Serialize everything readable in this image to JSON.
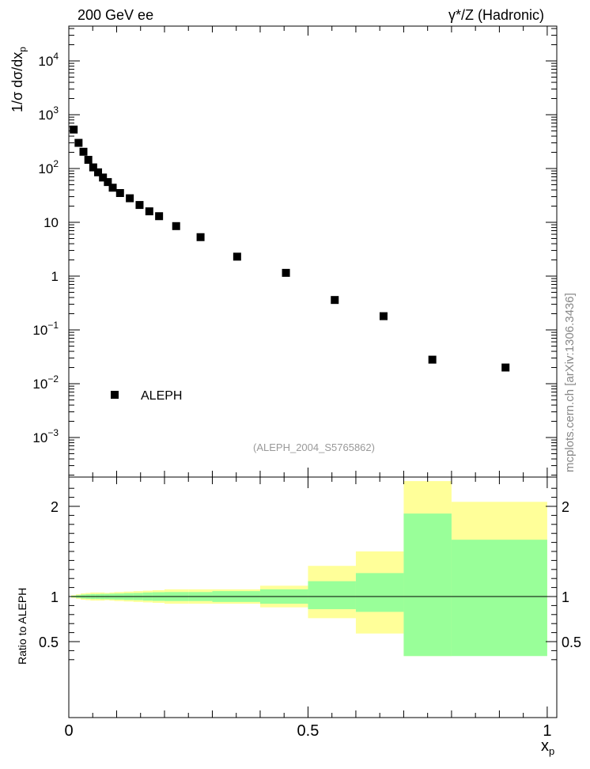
{
  "header": {
    "left": "200 GeV ee",
    "right": "γ*/Z (Hadronic)"
  },
  "side_label": "mcplots.cern.ch [arXiv:1306.3436]",
  "analysis_id": "(ALEPH_2004_S5765862)",
  "legend": {
    "label": "ALEPH",
    "position": "lower-left"
  },
  "chart_data": [
    {
      "type": "scatter",
      "panel": "main",
      "ylabel": "1/σ dσ/dx_p",
      "yscale": "log",
      "xlim": [
        0,
        1
      ],
      "ylim": [
        0.0002,
        40000
      ],
      "y_ticks": [
        "10^-3",
        "10^-2",
        "10^-1",
        "1",
        "10",
        "10^2",
        "10^3",
        "10^4"
      ],
      "marker": "square",
      "series": [
        {
          "name": "ALEPH",
          "x": [
            0.01,
            0.02,
            0.03,
            0.04,
            0.05,
            0.06,
            0.07,
            0.08,
            0.09,
            0.105,
            0.125,
            0.145,
            0.165,
            0.185,
            0.22,
            0.27,
            0.345,
            0.445,
            0.545,
            0.645,
            0.745,
            0.895
          ],
          "y": [
            530,
            300,
            205,
            145,
            105,
            85,
            68,
            56,
            44,
            35,
            28,
            21,
            16,
            13,
            8.5,
            5.3,
            2.3,
            1.15,
            0.36,
            0.18,
            0.028,
            0.02
          ]
        }
      ]
    },
    {
      "type": "area",
      "panel": "ratio",
      "xlabel": "x_p",
      "ylabel": "Ratio to ALEPH",
      "xlim": [
        0,
        1.02
      ],
      "ylim": [
        0.34,
        2.28
      ],
      "x_ticks": [
        "0",
        "0.5",
        "1"
      ],
      "y_ticks": [
        "0.5",
        "1",
        "2"
      ],
      "reference_line": 1,
      "bin_edges": [
        0.005,
        0.015,
        0.025,
        0.035,
        0.045,
        0.055,
        0.065,
        0.075,
        0.085,
        0.095,
        0.115,
        0.135,
        0.155,
        0.175,
        0.2,
        0.25,
        0.3,
        0.4,
        0.5,
        0.6,
        0.7,
        0.8,
        1.0
      ],
      "bands": [
        {
          "name": "total uncertainty",
          "color": "#ffff99",
          "low": [
            0.985,
            0.975,
            0.965,
            0.96,
            0.955,
            0.955,
            0.955,
            0.96,
            0.955,
            0.95,
            0.945,
            0.94,
            0.935,
            0.93,
            0.92,
            0.92,
            0.92,
            0.88,
            0.76,
            0.59,
            0.34,
            0.43
          ],
          "high": [
            1.015,
            1.025,
            1.035,
            1.04,
            1.045,
            1.045,
            1.045,
            1.04,
            1.045,
            1.05,
            1.055,
            1.06,
            1.065,
            1.07,
            1.08,
            1.08,
            1.08,
            1.12,
            1.34,
            1.5,
            2.28,
            2.05
          ]
        },
        {
          "name": "statistical uncertainty",
          "color": "#99ff99",
          "low": [
            0.992,
            0.985,
            0.978,
            0.975,
            0.972,
            0.972,
            0.97,
            0.97,
            0.968,
            0.966,
            0.962,
            0.96,
            0.955,
            0.952,
            0.95,
            0.95,
            0.94,
            0.92,
            0.86,
            0.83,
            0.34,
            0.34
          ],
          "high": [
            1.008,
            1.015,
            1.022,
            1.025,
            1.028,
            1.028,
            1.03,
            1.03,
            1.032,
            1.034,
            1.038,
            1.04,
            1.045,
            1.048,
            1.05,
            1.05,
            1.06,
            1.08,
            1.17,
            1.26,
            1.92,
            1.63
          ]
        }
      ],
      "band_colors": {
        "outer": "#ffff99",
        "inner": "#99ff99"
      }
    }
  ]
}
